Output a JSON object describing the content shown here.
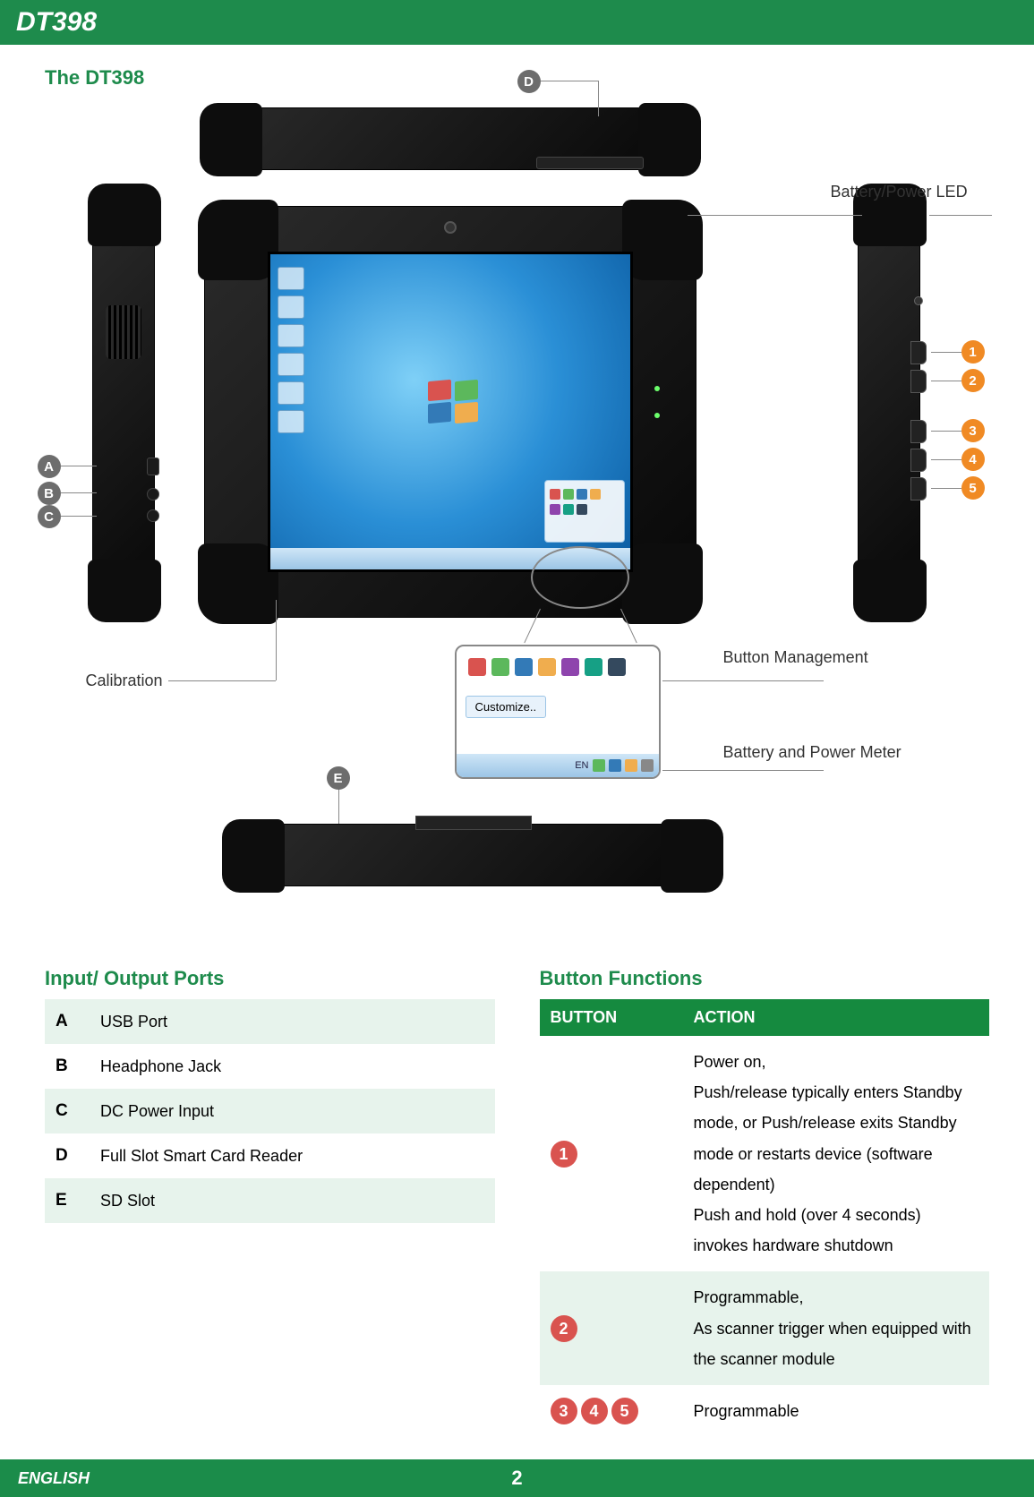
{
  "header": {
    "title": "DT398"
  },
  "subtitle": "The DT398",
  "diagram": {
    "label_callouts": {
      "battery_led": "Battery/Power LED",
      "button_mgmt": "Button Management",
      "power_meter": "Battery and Power Meter",
      "calibration": "Calibration",
      "customize": "Customize.."
    },
    "port_badges": [
      "A",
      "B",
      "C",
      "D",
      "E"
    ],
    "button_badges": [
      "1",
      "2",
      "3",
      "4",
      "5"
    ],
    "badge_colors": {
      "port": "#6d6d6d",
      "button": "#f08a24"
    },
    "zoom_icon_colors": [
      "#d9534f",
      "#5cb85c",
      "#337ab7",
      "#f0ad4e",
      "#8e44ad",
      "#16a085",
      "#34495e"
    ],
    "bottombar_lang": "EN"
  },
  "ports_section": {
    "title": "Input/ Output Ports",
    "rows": [
      {
        "key": "A",
        "desc": "USB Port"
      },
      {
        "key": "B",
        "desc": "Headphone Jack"
      },
      {
        "key": "C",
        "desc": "DC Power Input"
      },
      {
        "key": "D",
        "desc": "Full Slot Smart Card Reader"
      },
      {
        "key": "E",
        "desc": "SD Slot"
      }
    ]
  },
  "buttons_section": {
    "title": "Button Functions",
    "header": {
      "button": "BUTTON",
      "action": "ACTION"
    },
    "rows": [
      {
        "nums": [
          "1"
        ],
        "action": "Power on,\nPush/release typically enters Standby mode, or Push/release exits Standby mode or restarts device (software dependent)\nPush and hold (over 4 seconds) invokes hardware shutdown",
        "alt": false
      },
      {
        "nums": [
          "2"
        ],
        "action": "Programmable,\nAs scanner trigger when equipped with the scanner module",
        "alt": true
      },
      {
        "nums": [
          "3",
          "4",
          "5"
        ],
        "action": "Programmable",
        "alt": false
      }
    ],
    "badge_color": "#d9534f"
  },
  "footer": {
    "lang": "ENGLISH",
    "page": "2"
  },
  "colors": {
    "brand_green": "#1e8b4c",
    "row_tint": "#e7f3ec",
    "header_green": "#158a3f"
  }
}
